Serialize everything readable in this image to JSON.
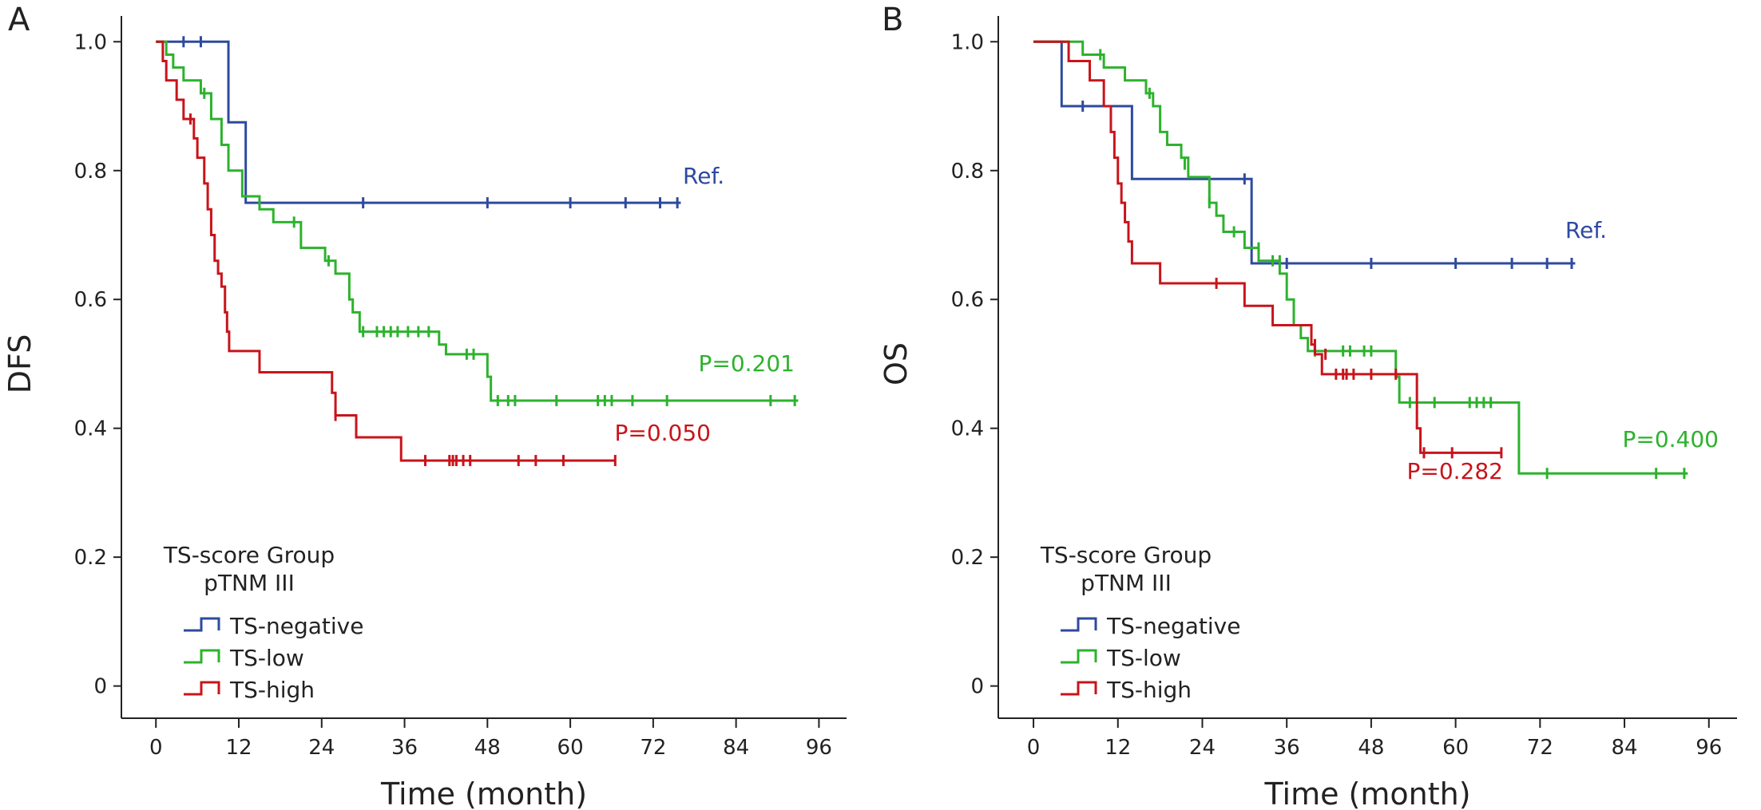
{
  "colors": {
    "TS-negative": "#2e4a9e",
    "TS-low": "#2db22d",
    "TS-high": "#c8141b",
    "axis": "#222222"
  },
  "chart_data": [
    {
      "type": "line",
      "subtype": "kaplan-meier",
      "panel": "A",
      "ylabel": "DFS",
      "xlabel": "Time (month)",
      "xlim": [
        -5,
        100
      ],
      "ylim": [
        -0.05,
        1.04
      ],
      "xticks": [
        0,
        12,
        24,
        36,
        48,
        60,
        72,
        84,
        96
      ],
      "yticks": [
        0,
        0.2,
        0.4,
        0.6,
        0.8,
        1.0
      ],
      "ytick_labels": [
        "0",
        "0.2",
        "0.4",
        "0.6",
        "0.8",
        "1.0"
      ],
      "grid": false,
      "legend": {
        "title": [
          "TS-score Group",
          "pTNM III"
        ],
        "entries": [
          "TS-negative",
          "TS-low",
          "TS-high"
        ],
        "position": "bottom-left"
      },
      "series": [
        {
          "name": "TS-negative",
          "annotation": "Ref.",
          "steps": [
            [
              0,
              1.0
            ],
            [
              10.5,
              0.875
            ],
            [
              13,
              0.75
            ],
            [
              76,
              0.75
            ]
          ],
          "censored": [
            [
              4,
              1.0
            ],
            [
              6.5,
              1.0
            ],
            [
              30,
              0.75
            ],
            [
              48,
              0.75
            ],
            [
              60,
              0.75
            ],
            [
              68,
              0.75
            ],
            [
              73,
              0.75
            ],
            [
              75.5,
              0.75
            ]
          ]
        },
        {
          "name": "TS-low",
          "annotation": "P=0.201",
          "steps": [
            [
              0,
              1.0
            ],
            [
              1.5,
              0.98
            ],
            [
              2.5,
              0.96
            ],
            [
              4,
              0.94
            ],
            [
              6.5,
              0.92
            ],
            [
              8,
              0.88
            ],
            [
              9.5,
              0.84
            ],
            [
              10.5,
              0.8
            ],
            [
              12.5,
              0.76
            ],
            [
              15,
              0.74
            ],
            [
              17,
              0.72
            ],
            [
              21,
              0.68
            ],
            [
              24.5,
              0.66
            ],
            [
              26,
              0.64
            ],
            [
              28,
              0.6
            ],
            [
              28.5,
              0.58
            ],
            [
              29.5,
              0.55
            ],
            [
              41,
              0.53
            ],
            [
              42,
              0.515
            ],
            [
              48,
              0.48
            ],
            [
              48.5,
              0.443
            ],
            [
              93,
              0.443
            ]
          ],
          "censored": [
            [
              7,
              0.92
            ],
            [
              20,
              0.72
            ],
            [
              25,
              0.66
            ],
            [
              30,
              0.55
            ],
            [
              32,
              0.55
            ],
            [
              33,
              0.55
            ],
            [
              34,
              0.55
            ],
            [
              35,
              0.55
            ],
            [
              36.5,
              0.55
            ],
            [
              38,
              0.55
            ],
            [
              39.5,
              0.55
            ],
            [
              45,
              0.515
            ],
            [
              46,
              0.515
            ],
            [
              49.5,
              0.443
            ],
            [
              51,
              0.443
            ],
            [
              52,
              0.443
            ],
            [
              58,
              0.443
            ],
            [
              64,
              0.443
            ],
            [
              65,
              0.443
            ],
            [
              66,
              0.443
            ],
            [
              69,
              0.443
            ],
            [
              74,
              0.443
            ],
            [
              89,
              0.443
            ],
            [
              92.5,
              0.443
            ]
          ]
        },
        {
          "name": "TS-high",
          "annotation": "P=0.050",
          "steps": [
            [
              0,
              1.0
            ],
            [
              1,
              0.97
            ],
            [
              1.5,
              0.94
            ],
            [
              3,
              0.91
            ],
            [
              4,
              0.88
            ],
            [
              5.5,
              0.85
            ],
            [
              6,
              0.82
            ],
            [
              7,
              0.78
            ],
            [
              7.5,
              0.74
            ],
            [
              8,
              0.7
            ],
            [
              8.5,
              0.66
            ],
            [
              9,
              0.64
            ],
            [
              9.5,
              0.62
            ],
            [
              10,
              0.58
            ],
            [
              10.3,
              0.55
            ],
            [
              10.6,
              0.52
            ],
            [
              15,
              0.487
            ],
            [
              25.5,
              0.455
            ],
            [
              26,
              0.42
            ],
            [
              29,
              0.386
            ],
            [
              35.5,
              0.35
            ],
            [
              66.5,
              0.35
            ]
          ],
          "censored": [
            [
              5,
              0.88
            ],
            [
              26,
              0.42
            ],
            [
              39,
              0.35
            ],
            [
              42.5,
              0.35
            ],
            [
              43,
              0.35
            ],
            [
              43.5,
              0.35
            ],
            [
              44.5,
              0.35
            ],
            [
              45.5,
              0.35
            ],
            [
              52.5,
              0.35
            ],
            [
              55,
              0.35
            ],
            [
              59,
              0.35
            ],
            [
              66.5,
              0.35
            ]
          ]
        }
      ]
    },
    {
      "type": "line",
      "subtype": "kaplan-meier",
      "panel": "B",
      "ylabel": "OS",
      "xlabel": "Time (month)",
      "xlim": [
        -5,
        100
      ],
      "ylim": [
        -0.05,
        1.04
      ],
      "xticks": [
        0,
        12,
        24,
        36,
        48,
        60,
        72,
        84,
        96
      ],
      "yticks": [
        0,
        0.2,
        0.4,
        0.6,
        0.8,
        1.0
      ],
      "ytick_labels": [
        "0",
        "0.2",
        "0.4",
        "0.6",
        "0.8",
        "1.0"
      ],
      "grid": false,
      "legend": {
        "title": [
          "TS-score Group",
          "pTNM III"
        ],
        "entries": [
          "TS-negative",
          "TS-low",
          "TS-high"
        ],
        "position": "bottom-left"
      },
      "series": [
        {
          "name": "TS-negative",
          "annotation": "Ref.",
          "steps": [
            [
              0,
              1.0
            ],
            [
              4,
              0.9
            ],
            [
              14,
              0.787
            ],
            [
              31,
              0.656
            ],
            [
              77,
              0.656
            ]
          ],
          "censored": [
            [
              7,
              0.9
            ],
            [
              30,
              0.787
            ],
            [
              36,
              0.656
            ],
            [
              48,
              0.656
            ],
            [
              60,
              0.656
            ],
            [
              68,
              0.656
            ],
            [
              73,
              0.656
            ],
            [
              76.5,
              0.656
            ]
          ]
        },
        {
          "name": "TS-low",
          "annotation": "P=0.400",
          "steps": [
            [
              0,
              1.0
            ],
            [
              7,
              0.98
            ],
            [
              10,
              0.96
            ],
            [
              13,
              0.94
            ],
            [
              16,
              0.92
            ],
            [
              17,
              0.9
            ],
            [
              18,
              0.86
            ],
            [
              19,
              0.84
            ],
            [
              21,
              0.82
            ],
            [
              22,
              0.79
            ],
            [
              25,
              0.75
            ],
            [
              26,
              0.73
            ],
            [
              27,
              0.705
            ],
            [
              30,
              0.68
            ],
            [
              32,
              0.66
            ],
            [
              35,
              0.64
            ],
            [
              36,
              0.6
            ],
            [
              37,
              0.56
            ],
            [
              38,
              0.54
            ],
            [
              39,
              0.52
            ],
            [
              51.5,
              0.48
            ],
            [
              52,
              0.44
            ],
            [
              69,
              0.33
            ],
            [
              93,
              0.33
            ]
          ],
          "censored": [
            [
              9.5,
              0.98
            ],
            [
              16.5,
              0.92
            ],
            [
              21.5,
              0.81
            ],
            [
              25,
              0.75
            ],
            [
              28.5,
              0.705
            ],
            [
              32,
              0.68
            ],
            [
              34,
              0.66
            ],
            [
              35,
              0.66
            ],
            [
              40,
              0.52
            ],
            [
              44,
              0.52
            ],
            [
              45,
              0.52
            ],
            [
              47,
              0.52
            ],
            [
              48,
              0.52
            ],
            [
              53.5,
              0.44
            ],
            [
              57,
              0.44
            ],
            [
              62,
              0.44
            ],
            [
              63,
              0.44
            ],
            [
              64,
              0.44
            ],
            [
              65,
              0.44
            ],
            [
              73,
              0.33
            ],
            [
              88.5,
              0.33
            ],
            [
              92.5,
              0.33
            ]
          ]
        },
        {
          "name": "TS-high",
          "annotation": "P=0.282",
          "steps": [
            [
              0,
              1.0
            ],
            [
              5,
              0.97
            ],
            [
              8,
              0.94
            ],
            [
              10,
              0.9
            ],
            [
              11,
              0.86
            ],
            [
              11.5,
              0.82
            ],
            [
              12,
              0.78
            ],
            [
              12.5,
              0.75
            ],
            [
              13,
              0.72
            ],
            [
              13.5,
              0.69
            ],
            [
              14,
              0.656
            ],
            [
              18,
              0.625
            ],
            [
              30,
              0.59
            ],
            [
              34,
              0.56
            ],
            [
              39.5,
              0.53
            ],
            [
              40,
              0.515
            ],
            [
              41,
              0.484
            ],
            [
              54.5,
              0.4
            ],
            [
              55,
              0.362
            ],
            [
              66.5,
              0.362
            ]
          ],
          "censored": [
            [
              26,
              0.625
            ],
            [
              40,
              0.53
            ],
            [
              41.5,
              0.515
            ],
            [
              43,
              0.484
            ],
            [
              44,
              0.484
            ],
            [
              44.5,
              0.484
            ],
            [
              45.5,
              0.484
            ],
            [
              48,
              0.484
            ],
            [
              51.5,
              0.484
            ],
            [
              55.5,
              0.362
            ],
            [
              59.5,
              0.362
            ],
            [
              66.5,
              0.362
            ]
          ]
        }
      ]
    }
  ]
}
